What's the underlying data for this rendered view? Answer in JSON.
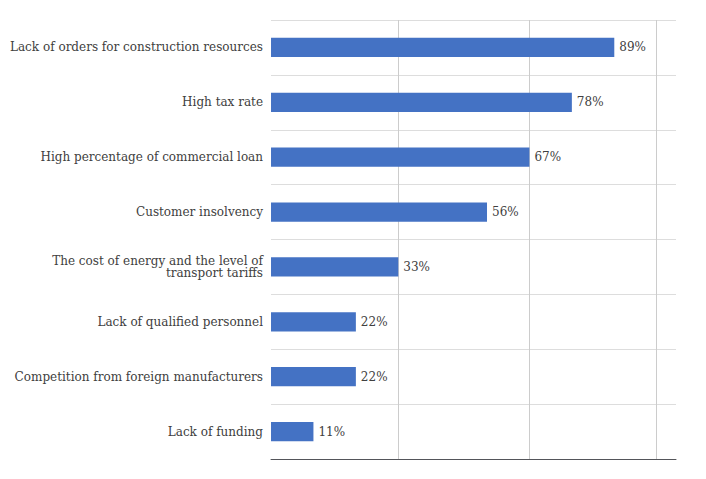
{
  "chart_data": {
    "type": "bar",
    "orientation": "horizontal",
    "categories": [
      "Lack of funding",
      "Competition from foreign manufacturers",
      "Lack of qualified personnel",
      "The cost of energy and the level of\ntransport tariffs",
      "Customer insolvency",
      "High percentage of commercial loan",
      "High tax rate",
      "Lack of orders for construction resources"
    ],
    "values": [
      11,
      22,
      22,
      33,
      56,
      67,
      78,
      89
    ],
    "value_labels": [
      "11%",
      "22%",
      "22%",
      "33%",
      "56%",
      "67%",
      "78%",
      "89%"
    ],
    "data_labels": true,
    "color": "#4472C4",
    "xlim": [
      0,
      105
    ],
    "xticks": [
      33,
      67,
      100
    ],
    "grid": true,
    "tick_labels": "y"
  }
}
